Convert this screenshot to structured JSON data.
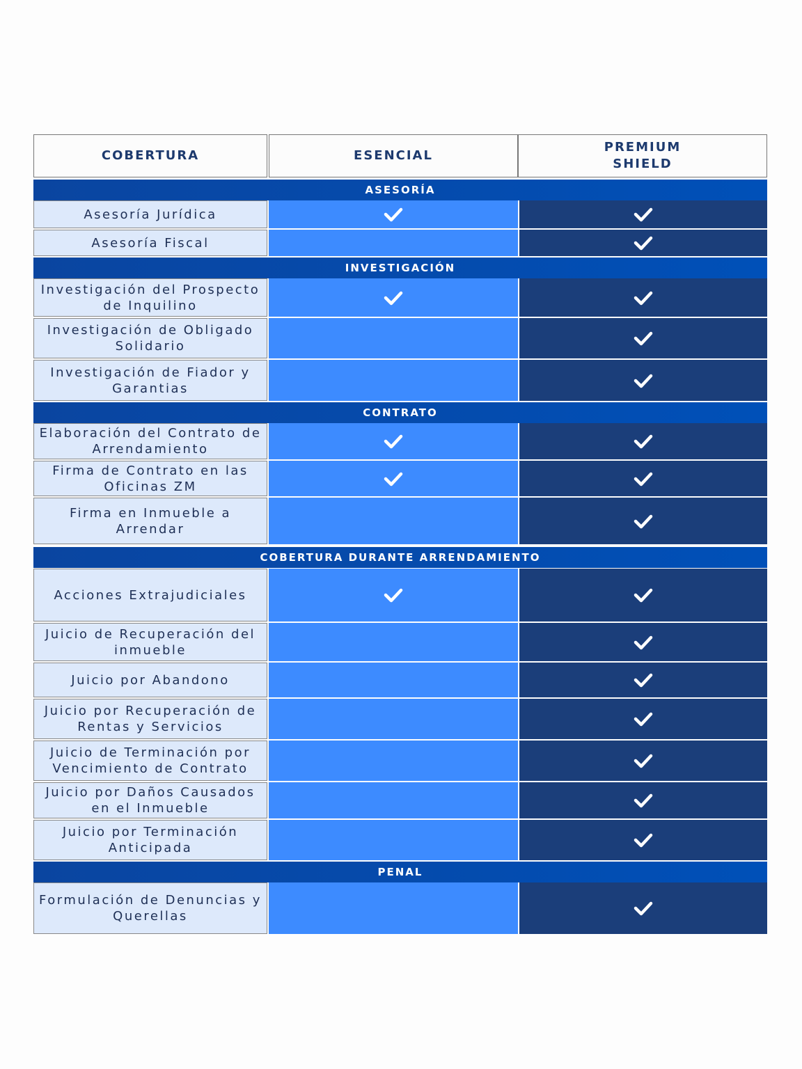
{
  "header": {
    "coverage": "COBERTURA",
    "essential": "ESENCIAL",
    "premium": "PREMIUM SHIELD"
  },
  "colors": {
    "section_bar": "#0047AB",
    "label_cell": "#DDE9FB",
    "essential_cell": "#3D8BFF",
    "premium_cell": "#1B3E7A",
    "header_text": "#1D3A6E"
  },
  "sections": [
    {
      "title": "ASESORÍA",
      "rows": [
        {
          "label": "Asesoría Jurídica",
          "essential": true,
          "premium": true
        },
        {
          "label": "Asesoría Fiscal",
          "essential": false,
          "premium": true
        }
      ]
    },
    {
      "title": "INVESTIGACIÓN",
      "rows": [
        {
          "label": "Investigación del Prospecto de Inquilino",
          "essential": true,
          "premium": true
        },
        {
          "label": "Investigación de Obligado Solidario",
          "essential": false,
          "premium": true
        },
        {
          "label": "Investigación de Fiador y Garantias",
          "essential": false,
          "premium": true
        }
      ]
    },
    {
      "title": "CONTRATO",
      "rows": [
        {
          "label": "Elaboración del Contrato de Arrendamiento",
          "essential": true,
          "premium": true
        },
        {
          "label": "Firma de Contrato en las Oficinas ZM",
          "essential": true,
          "premium": true
        },
        {
          "label": "Firma en Inmueble a Arrendar",
          "essential": false,
          "premium": true
        }
      ]
    },
    {
      "title": "COBERTURA DURANTE ARRENDAMIENTO",
      "rows": [
        {
          "label": "Acciones Extrajudiciales",
          "essential": true,
          "premium": true
        },
        {
          "label": "Juicio de Recuperación del inmueble",
          "essential": false,
          "premium": true
        },
        {
          "label": "Juicio por Abandono",
          "essential": false,
          "premium": true
        },
        {
          "label": "Juicio por Recuperación de Rentas y Servicios",
          "essential": false,
          "premium": true
        },
        {
          "label": "Juicio de Terminación por Vencimiento de Contrato",
          "essential": false,
          "premium": true
        },
        {
          "label": "Juicio por Daños Causados en el Inmueble",
          "essential": false,
          "premium": true
        },
        {
          "label": "Juicio por Terminación Anticipada",
          "essential": false,
          "premium": true
        }
      ]
    },
    {
      "title": "PENAL",
      "rows": [
        {
          "label": "Formulación de Denuncias y Querellas",
          "essential": false,
          "premium": true
        }
      ]
    }
  ]
}
